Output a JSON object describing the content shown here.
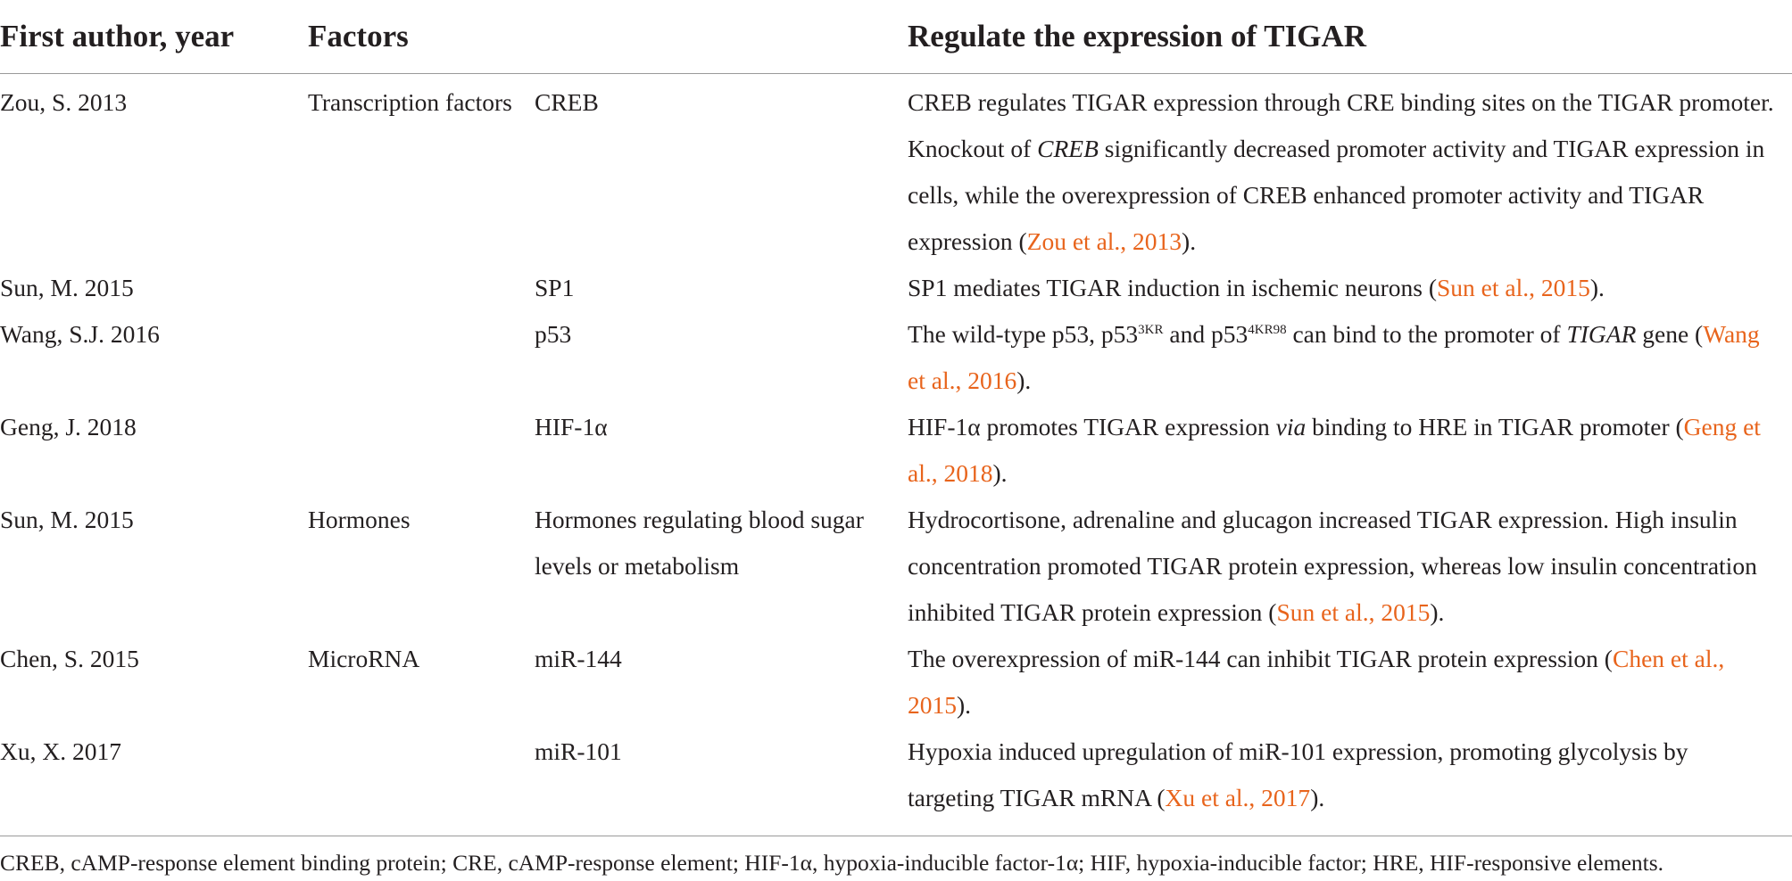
{
  "table": {
    "headers": {
      "author": "First author, year",
      "factors": "Factors",
      "regulate": "Regulate the expression of TIGAR"
    },
    "rows": [
      {
        "author": "Zou, S. 2013",
        "category": "Transcription factors",
        "factor": "CREB",
        "text_1": "CREB regulates TIGAR expression through CRE binding sites on the TIGAR promoter. Knockout of ",
        "text_italic": "CREB",
        "text_2": " significantly decreased promoter activity and TIGAR expression in cells, while the overexpression of CREB enhanced promoter activity and TIGAR expression (",
        "citation": "Zou et al., 2013",
        "text_end": ")."
      },
      {
        "author": "Sun, M. 2015",
        "category": "",
        "factor": "SP1",
        "text_1": "SP1 mediates TIGAR induction in ischemic neurons (",
        "citation": "Sun et al., 2015",
        "text_end": ")."
      },
      {
        "author": "Wang, S.J. 2016",
        "category": "",
        "factor": "p53",
        "text_1": "The wild-type p53, p53",
        "sup_1": "3KR",
        "text_2": " and p53",
        "sup_2": "4KR98",
        "text_3": " can bind to the promoter of ",
        "text_italic": "TIGAR",
        "text_4": " gene (",
        "citation": "Wang et al., 2016",
        "text_end": ")."
      },
      {
        "author": "Geng, J. 2018",
        "category": "",
        "factor": "HIF-1α",
        "text_1": "HIF-1α promotes TIGAR expression ",
        "text_italic": "via",
        "text_2": " binding to HRE in TIGAR promoter (",
        "citation": "Geng et al., 2018",
        "text_end": ")."
      },
      {
        "author": "Sun, M. 2015",
        "category": "Hormones",
        "factor": "Hormones regulating blood sugar levels or metabolism",
        "text_1": "Hydrocortisone, adrenaline and glucagon increased TIGAR expression. High insulin concentration promoted TIGAR protein expression, whereas low insulin concentration inhibited TIGAR protein expression (",
        "citation": "Sun et al., 2015",
        "text_end": ")."
      },
      {
        "author": "Chen, S. 2015",
        "category": "MicroRNA",
        "factor": "miR-144",
        "text_1": "The overexpression of miR-144 can inhibit TIGAR protein expression (",
        "citation": "Chen et al., 2015",
        "text_end": ")."
      },
      {
        "author": "Xu, X. 2017",
        "category": "",
        "factor": "miR-101",
        "text_1": "Hypoxia induced upregulation of miR-101 expression, promoting glycolysis by targeting TIGAR mRNA (",
        "citation": "Xu et al., 2017",
        "text_end": ")."
      }
    ],
    "footnote": "CREB, cAMP-response element binding protein; CRE, cAMP-response element; HIF-1α, hypoxia-inducible factor-1α; HIF, hypoxia-inducible factor; HRE, HIF-responsive elements."
  },
  "colors": {
    "text": "#231f20",
    "citation": "#e8641c",
    "rule": "#9a9a9a"
  }
}
